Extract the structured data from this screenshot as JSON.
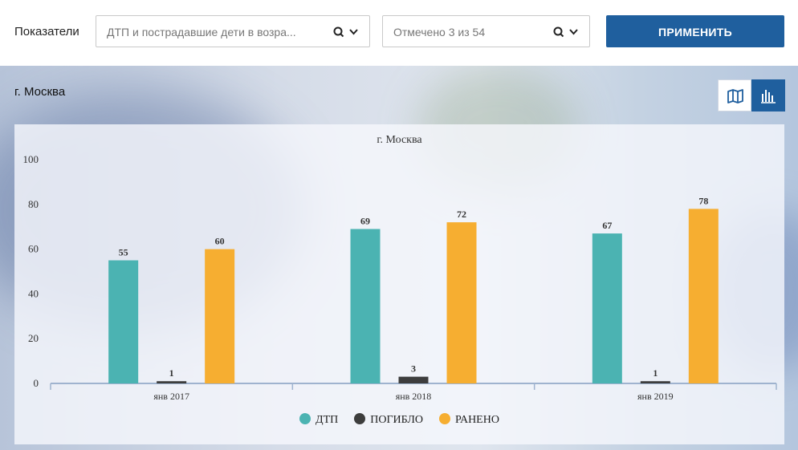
{
  "filters": {
    "indicators_label": "Показатели",
    "indicator_select": {
      "value": "ДТП и пострадавшие дети в возра..."
    },
    "marked_select": {
      "value": "Отмечено 3 из 54"
    },
    "apply_label": "ПРИМЕНИТЬ"
  },
  "region": {
    "title": "г. Москва"
  },
  "view_toggle": {
    "map_icon": "map-icon",
    "chart_icon": "bar-chart-icon"
  },
  "colors": {
    "accent": "#1f5f9e",
    "dtp": "#4bb3b2",
    "died": "#3d3d3d",
    "injured": "#f6ae31"
  },
  "chart_data": {
    "type": "bar",
    "title": "г. Москва",
    "categories": [
      "янв 2017",
      "янв 2018",
      "янв 2019"
    ],
    "series": [
      {
        "name": "ДТП",
        "color": "#4bb3b2",
        "values": [
          55,
          69,
          67
        ]
      },
      {
        "name": "ПОГИБЛО",
        "color": "#3d3d3d",
        "values": [
          1,
          3,
          1
        ]
      },
      {
        "name": "РАНЕНО",
        "color": "#f6ae31",
        "values": [
          60,
          72,
          78
        ]
      }
    ],
    "ylim": [
      0,
      100
    ],
    "yticks": [
      0,
      20,
      40,
      60,
      80,
      100
    ],
    "grid": false,
    "legend": "bottom"
  }
}
